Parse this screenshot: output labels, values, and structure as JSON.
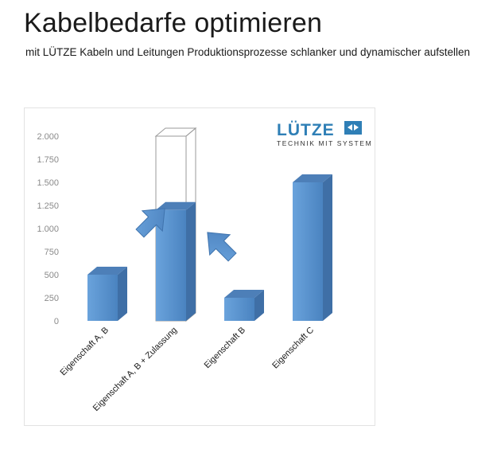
{
  "page": {
    "title": "Kabelbedarfe optimieren",
    "subtitle": "mit LÜTZE Kabeln und Leitungen Produktionsprozesse schlanker und dynamischer aufstellen"
  },
  "logo": {
    "brand": "LÜTZE",
    "tagline": "TECHNIK MIT SYSTEM",
    "color": "#2f7fb6"
  },
  "chart_data": {
    "type": "bar",
    "categories": [
      "Eigenschaft A, B",
      "Eigenschaft A, B + Zulassung",
      "Eigenschaft B",
      "Eigenschaft C"
    ],
    "values": [
      500,
      1200,
      250,
      1500
    ],
    "outline_bar": {
      "category": "Eigenschaft A, B + Zulassung",
      "value": 2000
    },
    "ylim": [
      0,
      2000
    ],
    "yticks": [
      0,
      250,
      500,
      750,
      1000,
      1250,
      1500,
      1750,
      2000
    ],
    "ytick_labels": [
      "0",
      "250",
      "500",
      "750",
      "1.000",
      "1.250",
      "1.500",
      "1.750",
      "2.000"
    ],
    "grid": false,
    "bar_color": "#5b93cf",
    "annotations": [
      "arrow-up-right",
      "arrow-up-left"
    ]
  }
}
